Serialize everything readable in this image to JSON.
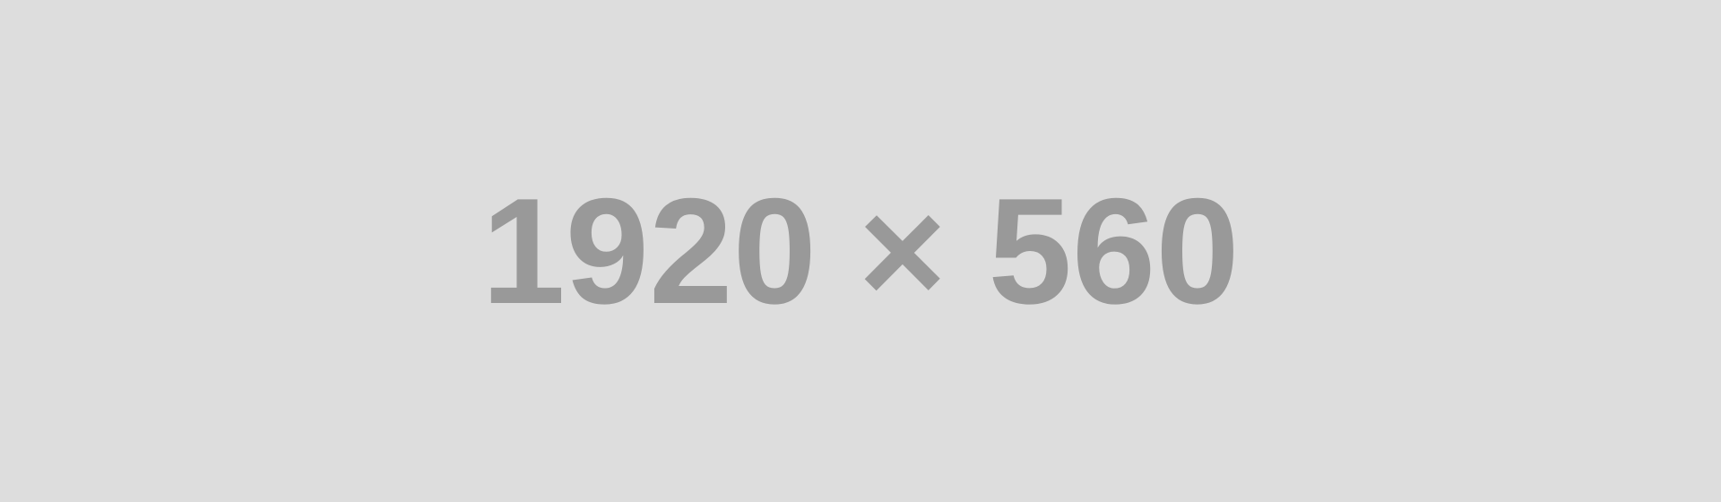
{
  "placeholder": {
    "label": "1920 × 560",
    "background_color": "#dddddd",
    "text_color": "#999999"
  }
}
